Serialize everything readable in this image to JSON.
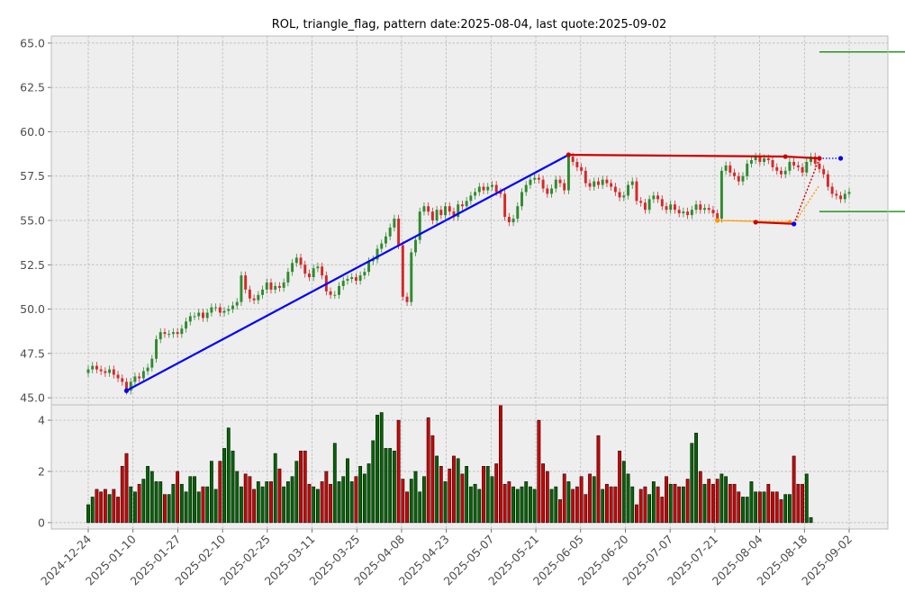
{
  "chart_data": {
    "type": "candlestick",
    "title": "ROL, triangle_flag, pattern date:2025-08-04, last quote:2025-09-02",
    "xlabel": "",
    "ylabel": "",
    "grid": true,
    "x_ticks": [
      "2024-12-24",
      "2025-01-10",
      "2025-01-27",
      "2025-02-10",
      "2025-02-25",
      "2025-03-11",
      "2025-03-25",
      "2025-04-08",
      "2025-04-23",
      "2025-05-07",
      "2025-05-21",
      "2025-06-05",
      "2025-06-20",
      "2025-07-07",
      "2025-07-21",
      "2025-08-04",
      "2025-08-18",
      "2025-09-02"
    ],
    "price_panel": {
      "ylim": [
        44.6,
        65.4
      ],
      "y_ticks": [
        "45.0",
        "47.5",
        "50.0",
        "52.5",
        "55.0",
        "57.5",
        "60.0",
        "62.5",
        "65.0"
      ],
      "y_tick_values": [
        45.0,
        47.5,
        50.0,
        52.5,
        55.0,
        57.5,
        60.0,
        62.5,
        65.0
      ],
      "close": [
        46.6,
        46.8,
        46.6,
        46.5,
        46.4,
        46.6,
        46.3,
        46.1,
        45.9,
        45.4,
        45.9,
        46.2,
        46.1,
        46.5,
        46.7,
        47.2,
        48.3,
        48.7,
        48.6,
        48.6,
        48.7,
        48.6,
        48.9,
        49.3,
        49.6,
        49.6,
        49.8,
        49.5,
        49.8,
        50.1,
        50.1,
        49.8,
        49.9,
        50.0,
        50.2,
        50.4,
        51.9,
        51.1,
        50.6,
        50.5,
        50.8,
        51.1,
        51.5,
        51.1,
        51.3,
        51.2,
        51.5,
        52.1,
        52.6,
        52.9,
        52.5,
        52.0,
        51.8,
        52.3,
        52.4,
        51.9,
        51.0,
        50.8,
        50.8,
        51.3,
        51.6,
        51.7,
        51.8,
        51.6,
        51.9,
        52.1,
        52.7,
        52.8,
        53.4,
        53.7,
        54.1,
        54.6,
        55.1,
        53.6,
        50.7,
        50.4,
        53.2,
        53.9,
        55.5,
        55.8,
        55.5,
        55.0,
        55.6,
        55.3,
        55.8,
        55.5,
        55.2,
        55.9,
        55.8,
        56.1,
        56.4,
        56.6,
        56.9,
        56.7,
        56.9,
        57.0,
        56.6,
        56.5,
        55.2,
        54.9,
        55.1,
        55.8,
        56.6,
        57.0,
        57.3,
        57.4,
        57.3,
        56.8,
        56.5,
        56.8,
        57.3,
        57.1,
        56.7,
        58.6,
        58.3,
        58.0,
        57.8,
        57.1,
        56.9,
        57.2,
        57.0,
        57.3,
        57.1,
        56.9,
        56.6,
        56.3,
        56.4,
        57.0,
        57.2,
        56.1,
        56.0,
        55.6,
        56.2,
        56.4,
        56.2,
        55.8,
        55.6,
        55.9,
        55.6,
        55.4,
        55.5,
        55.3,
        55.6,
        55.9,
        55.6,
        55.7,
        55.6,
        55.4,
        55.1,
        57.8,
        58.1,
        57.7,
        57.5,
        57.2,
        57.5,
        58.2,
        58.4,
        58.6,
        58.3,
        58.5,
        58.4,
        58.0,
        57.8,
        57.6,
        57.8,
        58.3,
        58.1,
        58.0,
        57.7,
        58.3,
        58.6,
        58.2,
        57.9,
        57.6,
        56.9,
        56.5,
        56.4,
        56.2,
        56.5,
        56.6
      ],
      "open": [
        46.4,
        46.6,
        46.8,
        46.6,
        46.5,
        46.4,
        46.6,
        46.3,
        46.1,
        45.9,
        45.4,
        45.9,
        46.2,
        46.1,
        46.5,
        46.7,
        47.2,
        48.3,
        48.7,
        48.6,
        48.6,
        48.7,
        48.6,
        48.9,
        49.3,
        49.6,
        49.6,
        49.8,
        49.5,
        49.8,
        50.1,
        50.1,
        49.8,
        49.9,
        50.0,
        50.2,
        50.4,
        51.9,
        51.1,
        50.6,
        50.5,
        50.8,
        51.1,
        51.5,
        51.1,
        51.3,
        51.2,
        51.5,
        52.1,
        52.6,
        52.9,
        52.5,
        52.0,
        51.8,
        52.3,
        52.4,
        51.9,
        51.0,
        50.8,
        50.8,
        51.3,
        51.6,
        51.7,
        51.8,
        51.6,
        51.9,
        52.1,
        52.7,
        52.8,
        53.4,
        53.7,
        54.1,
        54.6,
        55.1,
        53.6,
        50.7,
        50.4,
        53.2,
        53.9,
        55.5,
        55.8,
        55.5,
        55.0,
        55.6,
        55.3,
        55.8,
        55.5,
        55.2,
        55.9,
        55.8,
        56.1,
        56.4,
        56.6,
        56.9,
        56.7,
        56.9,
        57.0,
        56.6,
        56.5,
        55.2,
        54.9,
        55.1,
        55.8,
        56.6,
        57.0,
        57.3,
        57.4,
        57.3,
        56.8,
        56.5,
        56.8,
        57.3,
        57.1,
        56.7,
        58.6,
        58.3,
        58.0,
        57.8,
        57.1,
        56.9,
        57.2,
        57.0,
        57.3,
        57.1,
        56.9,
        56.6,
        56.3,
        56.4,
        57.0,
        57.2,
        56.1,
        56.0,
        55.6,
        56.2,
        56.4,
        56.2,
        55.8,
        55.6,
        55.9,
        55.6,
        55.4,
        55.5,
        55.3,
        55.6,
        55.9,
        55.6,
        55.7,
        55.6,
        55.4,
        55.1,
        57.8,
        58.1,
        57.7,
        57.5,
        57.2,
        57.5,
        58.2,
        58.4,
        58.6,
        58.3,
        58.5,
        58.4,
        58.0,
        57.8,
        57.6,
        57.8,
        58.3,
        58.1,
        58.0,
        57.7,
        58.3,
        58.6,
        58.2,
        57.9,
        57.6,
        56.9,
        56.5,
        56.4,
        56.2,
        56.5
      ]
    },
    "volume_panel": {
      "ylim": [
        -0.25,
        4.6
      ],
      "y_ticks": [
        "0",
        "2",
        "4"
      ],
      "y_tick_values": [
        0,
        2,
        4
      ],
      "volume": [
        0.7,
        1.0,
        1.3,
        1.2,
        1.3,
        1.1,
        1.3,
        1.0,
        2.2,
        2.7,
        1.4,
        1.2,
        1.5,
        1.7,
        2.2,
        2.0,
        1.6,
        1.6,
        1.1,
        1.1,
        1.5,
        2.0,
        1.5,
        1.2,
        1.8,
        1.8,
        1.2,
        1.4,
        1.4,
        2.4,
        1.3,
        2.4,
        2.9,
        3.7,
        2.8,
        2.0,
        1.4,
        1.9,
        1.8,
        1.3,
        1.6,
        1.4,
        1.6,
        1.6,
        2.7,
        2.1,
        1.4,
        1.6,
        1.8,
        2.4,
        2.8,
        2.8,
        1.5,
        1.4,
        1.3,
        1.6,
        2.0,
        1.5,
        3.1,
        1.6,
        1.8,
        2.5,
        1.6,
        1.8,
        2.2,
        1.9,
        2.3,
        3.2,
        4.2,
        4.3,
        2.9,
        2.9,
        2.8,
        4.0,
        1.7,
        1.2,
        1.7,
        2.0,
        1.2,
        1.8,
        4.1,
        3.4,
        2.6,
        2.2,
        1.6,
        2.1,
        2.6,
        2.5,
        1.9,
        2.2,
        1.4,
        1.5,
        1.3,
        2.2,
        2.2,
        1.8,
        2.3,
        4.6,
        1.5,
        1.6,
        1.4,
        1.3,
        1.4,
        1.6,
        1.4,
        1.3,
        4.0,
        2.3,
        2.0,
        1.3,
        1.4,
        0.9,
        1.9,
        1.6,
        1.3,
        1.4,
        1.8,
        1.1,
        1.9,
        1.8,
        3.4,
        1.3,
        1.5,
        1.4,
        1.4,
        2.8,
        2.4,
        1.9,
        1.4,
        0.7,
        1.3,
        1.4,
        1.1,
        1.6,
        1.4,
        1.0,
        1.8,
        1.5,
        1.5,
        1.4,
        1.4,
        1.7,
        3.1,
        3.5,
        2.0,
        1.5,
        1.7,
        1.5,
        1.7,
        1.9,
        1.8,
        1.5,
        1.5,
        1.2,
        1.0,
        1.0,
        1.6,
        1.2,
        1.2,
        1.2,
        1.5,
        1.2,
        1.2,
        0.9,
        1.1,
        1.1,
        2.6,
        1.5,
        1.5,
        1.9,
        0.2
      ]
    },
    "overlays": {
      "blue_line": [
        [
          9,
          45.4
        ],
        [
          113,
          58.7
        ]
      ],
      "red_upper": [
        [
          113,
          58.7
        ],
        [
          164,
          58.6
        ],
        [
          172,
          58.5
        ]
      ],
      "red_lower": [
        [
          157,
          54.9
        ],
        [
          166,
          54.8
        ]
      ],
      "orange_line": [
        [
          148,
          55.0
        ],
        [
          165,
          54.9
        ]
      ],
      "dotted_red": [
        [
          166,
          54.8
        ],
        [
          172,
          58.5
        ]
      ],
      "dotted_orange": [
        [
          166,
          54.8
        ],
        [
          172,
          57.0
        ]
      ],
      "dotted_blue": [
        [
          172,
          58.5
        ],
        [
          177,
          58.5
        ]
      ],
      "target_upper": 64.5,
      "target_lower": 55.5,
      "target_x_range": [
        172,
        197
      ]
    },
    "colors": {
      "up": "#2e8b2e",
      "down": "#d62728",
      "blue_line": "#0000ff",
      "red_line": "#cc0000",
      "orange_line": "#ff9900",
      "target": "#008000",
      "panel_bg": "#eeeeee"
    }
  }
}
